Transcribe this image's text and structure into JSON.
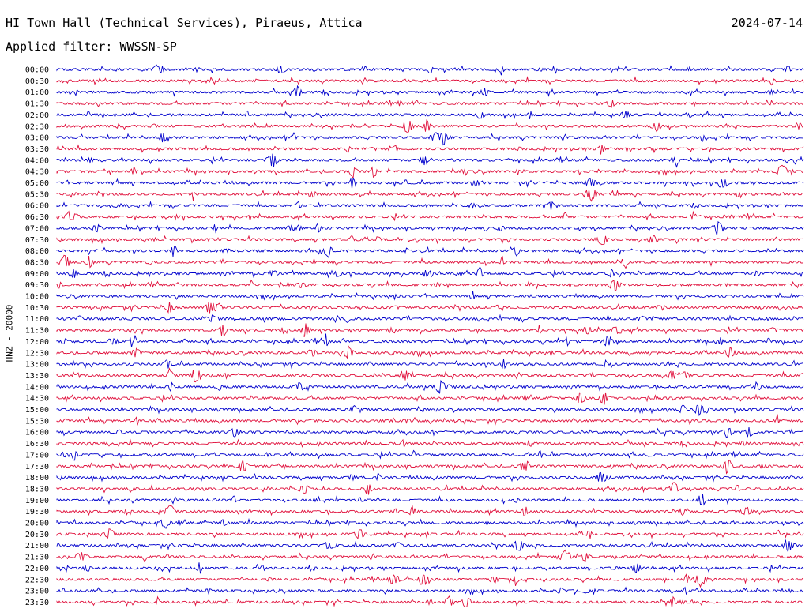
{
  "header": {
    "station": "HI Town Hall (Technical Services), Piraeus, Attica",
    "date": "2024-07-14",
    "filter": "Applied filter: WWSSN-SP"
  },
  "chart_data": {
    "type": "line",
    "title": "HI Town Hall (Technical Services), Piraeus, Attica",
    "ylabel": "HNZ - 20000",
    "xlabel": "",
    "row_labels": [
      "00:00",
      "00:30",
      "01:00",
      "01:30",
      "02:00",
      "02:30",
      "03:00",
      "03:30",
      "04:00",
      "04:30",
      "05:00",
      "05:30",
      "06:00",
      "06:30",
      "07:00",
      "07:30",
      "08:00",
      "08:30",
      "09:00",
      "09:30",
      "10:00",
      "10:30",
      "11:00",
      "11:30",
      "12:00",
      "12:30",
      "13:00",
      "13:30",
      "14:00",
      "14:30",
      "15:00",
      "15:30",
      "16:00",
      "16:30",
      "17:00",
      "17:30",
      "18:00",
      "18:30",
      "19:00",
      "19:30",
      "20:00",
      "20:30",
      "21:00",
      "21:30",
      "22:00",
      "22:30",
      "23:00",
      "23:30"
    ],
    "colors": [
      "#0000cc",
      "#e0103c"
    ],
    "grid": false,
    "legend": "none"
  }
}
